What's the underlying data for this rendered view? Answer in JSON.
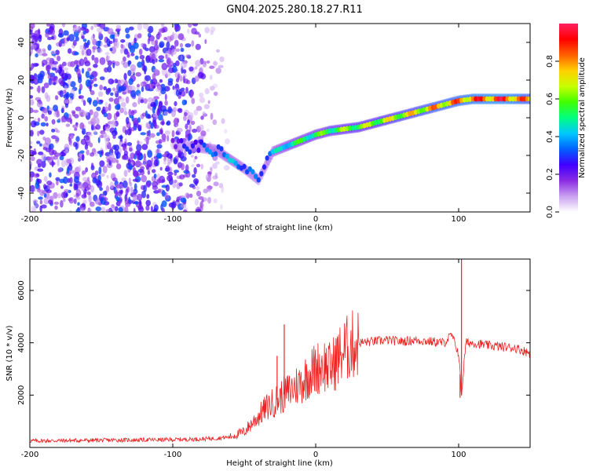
{
  "figure_title": "GN04.2025.280.18.27.R11",
  "chart_data": [
    {
      "type": "heatmap",
      "xlabel": "Height of straight line (km)",
      "ylabel": "Frequency (Hz)",
      "xlim": [
        -200,
        150
      ],
      "ylim": [
        -50,
        50
      ],
      "xticks": [
        -200,
        -100,
        0,
        100
      ],
      "yticks": [
        -40,
        -20,
        0,
        20,
        40
      ],
      "colorbar": {
        "label": "Normalized spectral amplitude",
        "range": [
          0.0,
          1.0
        ],
        "ticks": [
          0.0,
          0.2,
          0.4,
          0.6,
          0.8
        ],
        "tick_labels": [
          "0.0",
          "0.2",
          "0.4",
          "0.6",
          "0.8"
        ],
        "colormap": [
          "#ffffff",
          "#c9a0f0",
          "#8a2be2",
          "#4000ff",
          "#0060ff",
          "#00c8ff",
          "#00ff80",
          "#40ff00",
          "#c8ff00",
          "#ffd000",
          "#ff6000",
          "#ff0000",
          "#ff2060"
        ]
      },
      "noise_region": {
        "x_range": [
          -200,
          -65
        ],
        "y_range": [
          -50,
          50
        ],
        "description_level": 0.3
      },
      "signal_trace": {
        "x": [
          -100,
          -90,
          -80,
          -70,
          -60,
          -50,
          -40,
          -30,
          -20,
          -10,
          0,
          10,
          20,
          30,
          40,
          50,
          60,
          70,
          80,
          90,
          100,
          110,
          120,
          130,
          140,
          150
        ],
        "frequency": [
          -14,
          -15,
          -16,
          -17,
          -22,
          -27,
          -33,
          -18,
          -15,
          -12,
          -9,
          -7,
          -6,
          -5,
          -3,
          -1,
          1,
          3,
          5,
          7,
          9,
          10,
          10,
          10,
          10,
          10
        ],
        "amplitude": [
          0.25,
          0.3,
          0.35,
          0.4,
          0.45,
          0.4,
          0.35,
          0.45,
          0.55,
          0.6,
          0.62,
          0.65,
          0.68,
          0.7,
          0.72,
          0.75,
          0.78,
          0.8,
          0.85,
          0.88,
          0.9,
          0.95,
          0.98,
          1.0,
          0.95,
          0.85
        ]
      }
    },
    {
      "type": "line",
      "xlabel": "Height of straight line (km)",
      "ylabel": "SNR (10 * v/v)",
      "xlim": [
        -200,
        150
      ],
      "ylim": [
        0,
        7200
      ],
      "xticks": [
        -200,
        -100,
        0,
        100
      ],
      "yticks": [
        2000,
        4000,
        6000
      ],
      "series": [
        {
          "name": "SNR",
          "color": "#ee2222",
          "x": [
            -200,
            -180,
            -160,
            -140,
            -120,
            -100,
            -80,
            -70,
            -60,
            -50,
            -45,
            -40,
            -35,
            -30,
            -25,
            -20,
            -15,
            -10,
            -5,
            0,
            5,
            10,
            15,
            20,
            25,
            30,
            40,
            50,
            60,
            70,
            80,
            90,
            95,
            100,
            102,
            105,
            110,
            120,
            130,
            140,
            150
          ],
          "y": [
            250,
            260,
            270,
            280,
            290,
            300,
            320,
            350,
            400,
            600,
            900,
            1200,
            1500,
            1700,
            1900,
            2100,
            2300,
            2500,
            2800,
            3000,
            3200,
            3000,
            3400,
            3700,
            3900,
            4000,
            4050,
            4100,
            4050,
            4100,
            4050,
            4000,
            4300,
            3600,
            2000,
            4000,
            4000,
            3900,
            3850,
            3800,
            3600
          ]
        }
      ],
      "spikes": [
        {
          "x": -22,
          "y": 4700
        },
        {
          "x": -27,
          "y": 3500
        },
        {
          "x": 102,
          "y": 7200
        },
        {
          "x": 101,
          "y": 1900
        }
      ]
    }
  ]
}
